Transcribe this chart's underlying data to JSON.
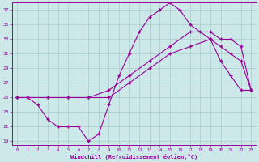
{
  "xlabel": "Windchill (Refroidissement éolien,°C)",
  "background_color": "#cce8e8",
  "grid_color": "#aacccc",
  "line_color": "#990099",
  "xlim": [
    -0.5,
    23.5
  ],
  "ylim": [
    18.5,
    38.0
  ],
  "xticks": [
    0,
    1,
    2,
    3,
    4,
    5,
    6,
    7,
    8,
    9,
    10,
    11,
    12,
    13,
    14,
    15,
    16,
    17,
    18,
    19,
    20,
    21,
    22,
    23
  ],
  "yticks": [
    19,
    21,
    23,
    25,
    27,
    29,
    31,
    33,
    35,
    37
  ],
  "curve1_x": [
    0,
    1,
    2,
    3,
    4,
    5,
    6,
    7,
    8,
    9,
    10,
    11,
    12,
    13,
    14,
    15,
    16,
    17,
    18,
    19,
    20,
    21,
    22,
    23
  ],
  "curve1_y": [
    25,
    25,
    24,
    22,
    21,
    21,
    21,
    19,
    20,
    24,
    28,
    31,
    34,
    36,
    37,
    38,
    37,
    35,
    34,
    33,
    30,
    28,
    26,
    26
  ],
  "curve2_x": [
    0,
    1,
    3,
    5,
    7,
    9,
    11,
    13,
    15,
    17,
    19,
    20,
    21,
    22,
    23
  ],
  "curve2_y": [
    25,
    25,
    25,
    25,
    25,
    26,
    28,
    30,
    32,
    34,
    34,
    33,
    33,
    32,
    26
  ],
  "curve3_x": [
    0,
    1,
    3,
    5,
    7,
    9,
    11,
    13,
    15,
    17,
    19,
    20,
    21,
    22,
    23
  ],
  "curve3_y": [
    25,
    25,
    25,
    25,
    25,
    25,
    27,
    29,
    31,
    32,
    33,
    32,
    31,
    30,
    26
  ]
}
